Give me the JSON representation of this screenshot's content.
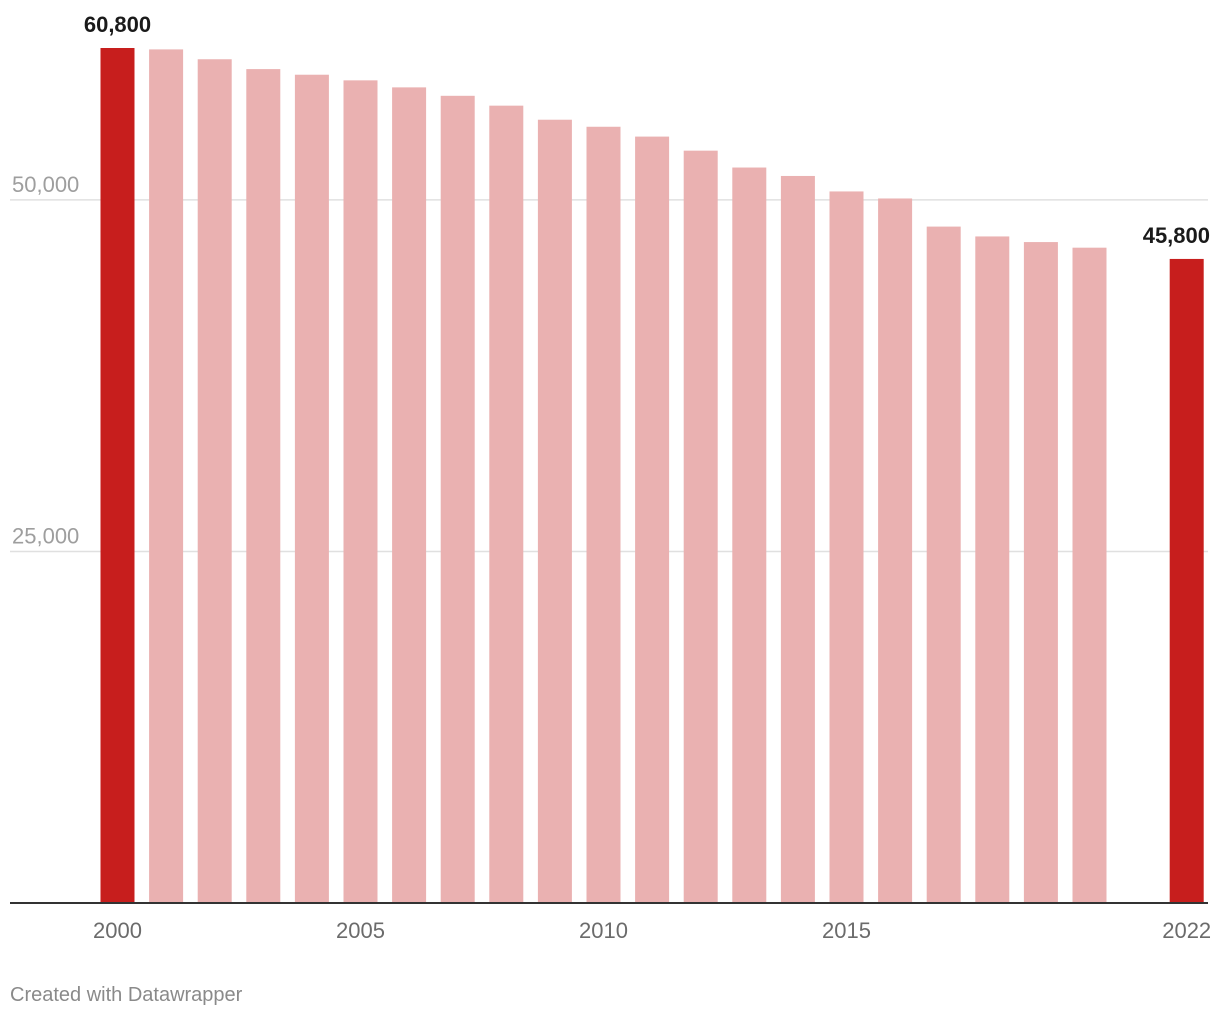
{
  "chart_data": {
    "type": "bar",
    "x": [
      2000,
      2001,
      2002,
      2003,
      2004,
      2005,
      2006,
      2007,
      2008,
      2009,
      2010,
      2011,
      2012,
      2013,
      2014,
      2015,
      2016,
      2017,
      2018,
      2019,
      2020,
      2021,
      2022
    ],
    "values": [
      60800,
      60700,
      60000,
      59300,
      58900,
      58500,
      58000,
      57400,
      56700,
      55700,
      55200,
      54500,
      53500,
      52300,
      51700,
      50600,
      50100,
      48100,
      47400,
      47000,
      46600,
      null,
      45800
    ],
    "data_labels": [
      {
        "x": 2000,
        "text": "60,800"
      },
      {
        "x": 2022,
        "text": "45,800"
      }
    ],
    "highlighted_x": [
      2000,
      2022
    ],
    "colors": {
      "highlight": "#c71e1d",
      "default": "#eab1b1",
      "grid": "#e0e0e0",
      "axis": "#333333"
    },
    "ylim": [
      0,
      60800
    ],
    "yticks": [
      {
        "value": 25000,
        "label": "25,000"
      },
      {
        "value": 50000,
        "label": "50,000"
      }
    ],
    "xticks": [
      {
        "value": 2000,
        "label": "2000"
      },
      {
        "value": 2005,
        "label": "2005"
      },
      {
        "value": 2010,
        "label": "2010"
      },
      {
        "value": 2015,
        "label": "2015"
      },
      {
        "value": 2022,
        "label": "2022"
      }
    ],
    "grid": true,
    "title": "",
    "xlabel": "",
    "ylabel": ""
  },
  "footer": {
    "credit": "Created with Datawrapper"
  }
}
